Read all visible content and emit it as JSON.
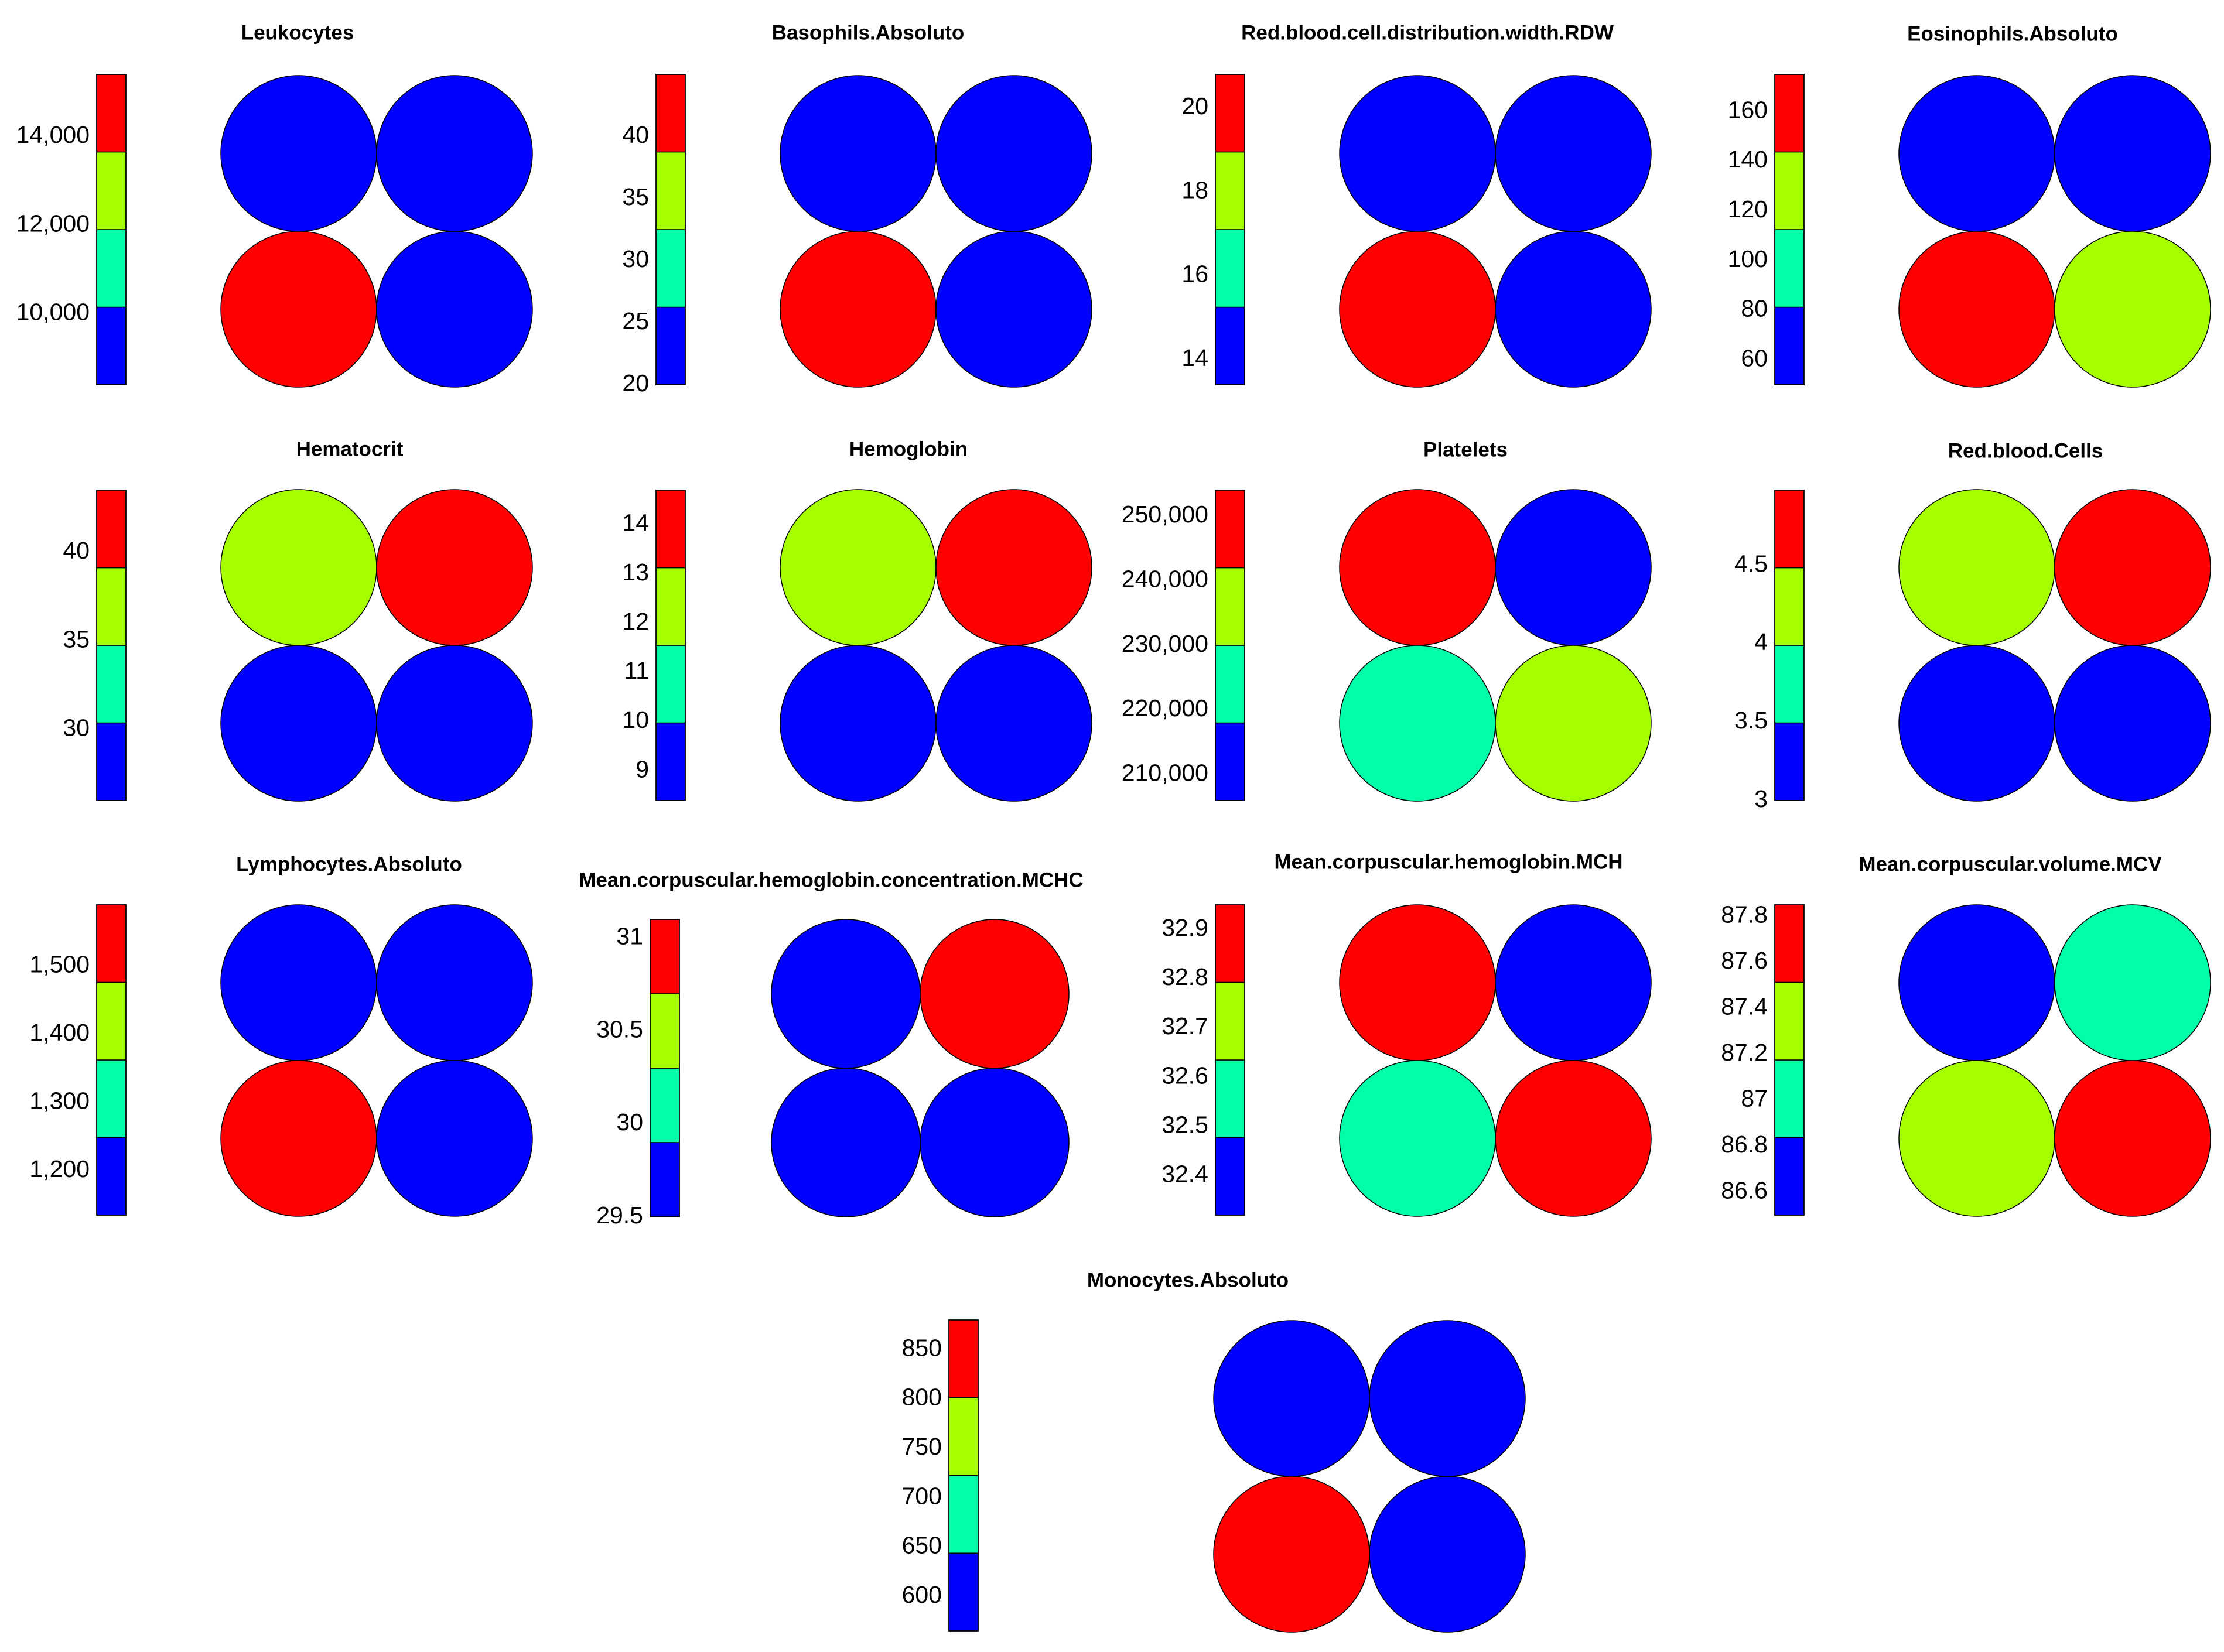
{
  "palette": {
    "blue": "#0000ff",
    "teal": "#00ffa6",
    "lime": "#a6ff00",
    "red": "#ff0000"
  },
  "colorbar_bins": [
    "blue",
    "teal",
    "lime",
    "red"
  ],
  "chart_data": [
    {
      "type": "heatmap",
      "title": "Leukocytes",
      "colorbar": {
        "range": [
          8400,
          15400
        ],
        "ticks": [
          "10,000",
          "12,000",
          "14,000"
        ],
        "tick_values": [
          10000,
          12000,
          14000
        ]
      },
      "cells": [
        [
          "blue",
          "blue"
        ],
        [
          "red",
          "blue"
        ]
      ]
    },
    {
      "type": "heatmap",
      "title": "Basophils.Absoluto",
      "colorbar": {
        "range": [
          20,
          45
        ],
        "ticks": [
          "20",
          "25",
          "30",
          "35",
          "40"
        ],
        "tick_values": [
          20,
          25,
          30,
          35,
          40
        ]
      },
      "cells": [
        [
          "blue",
          "blue"
        ],
        [
          "red",
          "blue"
        ]
      ]
    },
    {
      "type": "heatmap",
      "title": "Red.blood.cell.distribution.width.RDW",
      "colorbar": {
        "range": [
          13.4,
          20.8
        ],
        "ticks": [
          "14",
          "16",
          "18",
          "20"
        ],
        "tick_values": [
          14,
          16,
          18,
          20
        ]
      },
      "cells": [
        [
          "blue",
          "blue"
        ],
        [
          "red",
          "blue"
        ]
      ]
    },
    {
      "type": "heatmap",
      "title": "Eosinophils.Absoluto",
      "colorbar": {
        "range": [
          50,
          175
        ],
        "ticks": [
          "60",
          "80",
          "100",
          "120",
          "140",
          "160"
        ],
        "tick_values": [
          60,
          80,
          100,
          120,
          140,
          160
        ]
      },
      "cells": [
        [
          "blue",
          "blue"
        ],
        [
          "red",
          "lime"
        ]
      ]
    },
    {
      "type": "heatmap",
      "title": "Hematocrit",
      "colorbar": {
        "range": [
          26,
          43.5
        ],
        "ticks": [
          "30",
          "35",
          "40"
        ],
        "tick_values": [
          30,
          35,
          40
        ]
      },
      "cells": [
        [
          "lime",
          "red"
        ],
        [
          "blue",
          "blue"
        ]
      ]
    },
    {
      "type": "heatmap",
      "title": "Hemoglobin",
      "colorbar": {
        "range": [
          8.4,
          14.7
        ],
        "ticks": [
          "9",
          "10",
          "11",
          "12",
          "13",
          "14"
        ],
        "tick_values": [
          9,
          10,
          11,
          12,
          13,
          14
        ]
      },
      "cells": [
        [
          "lime",
          "red"
        ],
        [
          "blue",
          "blue"
        ]
      ]
    },
    {
      "type": "heatmap",
      "title": "Platelets",
      "colorbar": {
        "range": [
          206000,
          254000
        ],
        "ticks": [
          "210,000",
          "220,000",
          "230,000",
          "240,000",
          "250,000"
        ],
        "tick_values": [
          210000,
          220000,
          230000,
          240000,
          250000
        ]
      },
      "cells": [
        [
          "red",
          "blue"
        ],
        [
          "teal",
          "lime"
        ]
      ]
    },
    {
      "type": "heatmap",
      "title": "Red.blood.Cells",
      "colorbar": {
        "range": [
          3.0,
          4.98
        ],
        "ticks": [
          "3",
          "3.5",
          "4",
          "4.5"
        ],
        "tick_values": [
          3,
          3.5,
          4,
          4.5
        ]
      },
      "cells": [
        [
          "lime",
          "red"
        ],
        [
          "blue",
          "blue"
        ]
      ]
    },
    {
      "type": "heatmap",
      "title": "Lymphocytes.Absoluto",
      "colorbar": {
        "range": [
          1135,
          1590
        ],
        "ticks": [
          "1,200",
          "1,300",
          "1,400",
          "1,500"
        ],
        "tick_values": [
          1200,
          1300,
          1400,
          1500
        ]
      },
      "cells": [
        [
          "blue",
          "blue"
        ],
        [
          "red",
          "blue"
        ]
      ]
    },
    {
      "type": "heatmap",
      "title": "Mean.corpuscular.hemoglobin.concentration.MCHC",
      "colorbar": {
        "range": [
          29.5,
          31.1
        ],
        "ticks": [
          "29.5",
          "30",
          "30.5",
          "31"
        ],
        "tick_values": [
          29.5,
          30,
          30.5,
          31
        ]
      },
      "cells": [
        [
          "blue",
          "red"
        ],
        [
          "blue",
          "blue"
        ]
      ]
    },
    {
      "type": "heatmap",
      "title": "Mean.corpuscular.hemoglobin.MCH",
      "colorbar": {
        "range": [
          32.32,
          32.95
        ],
        "ticks": [
          "32.4",
          "32.5",
          "32.6",
          "32.7",
          "32.8",
          "32.9"
        ],
        "tick_values": [
          32.4,
          32.5,
          32.6,
          32.7,
          32.8,
          32.9
        ]
      },
      "cells": [
        [
          "red",
          "blue"
        ],
        [
          "teal",
          "red"
        ]
      ]
    },
    {
      "type": "heatmap",
      "title": "Mean.corpuscular.volume.MCV",
      "colorbar": {
        "range": [
          86.5,
          87.85
        ],
        "ticks": [
          "86.6",
          "86.8",
          "87",
          "87.2",
          "87.4",
          "87.6",
          "87.8"
        ],
        "tick_values": [
          86.6,
          86.8,
          87,
          87.2,
          87.4,
          87.6,
          87.8
        ]
      },
      "cells": [
        [
          "blue",
          "teal"
        ],
        [
          "lime",
          "red"
        ]
      ]
    },
    {
      "type": "heatmap",
      "title": "Monocytes.Absoluto",
      "colorbar": {
        "range": [
          565,
          880
        ],
        "ticks": [
          "600",
          "650",
          "700",
          "750",
          "800",
          "850"
        ],
        "tick_values": [
          600,
          650,
          700,
          750,
          800,
          850
        ]
      },
      "cells": [
        [
          "blue",
          "blue"
        ],
        [
          "red",
          "blue"
        ]
      ]
    }
  ]
}
